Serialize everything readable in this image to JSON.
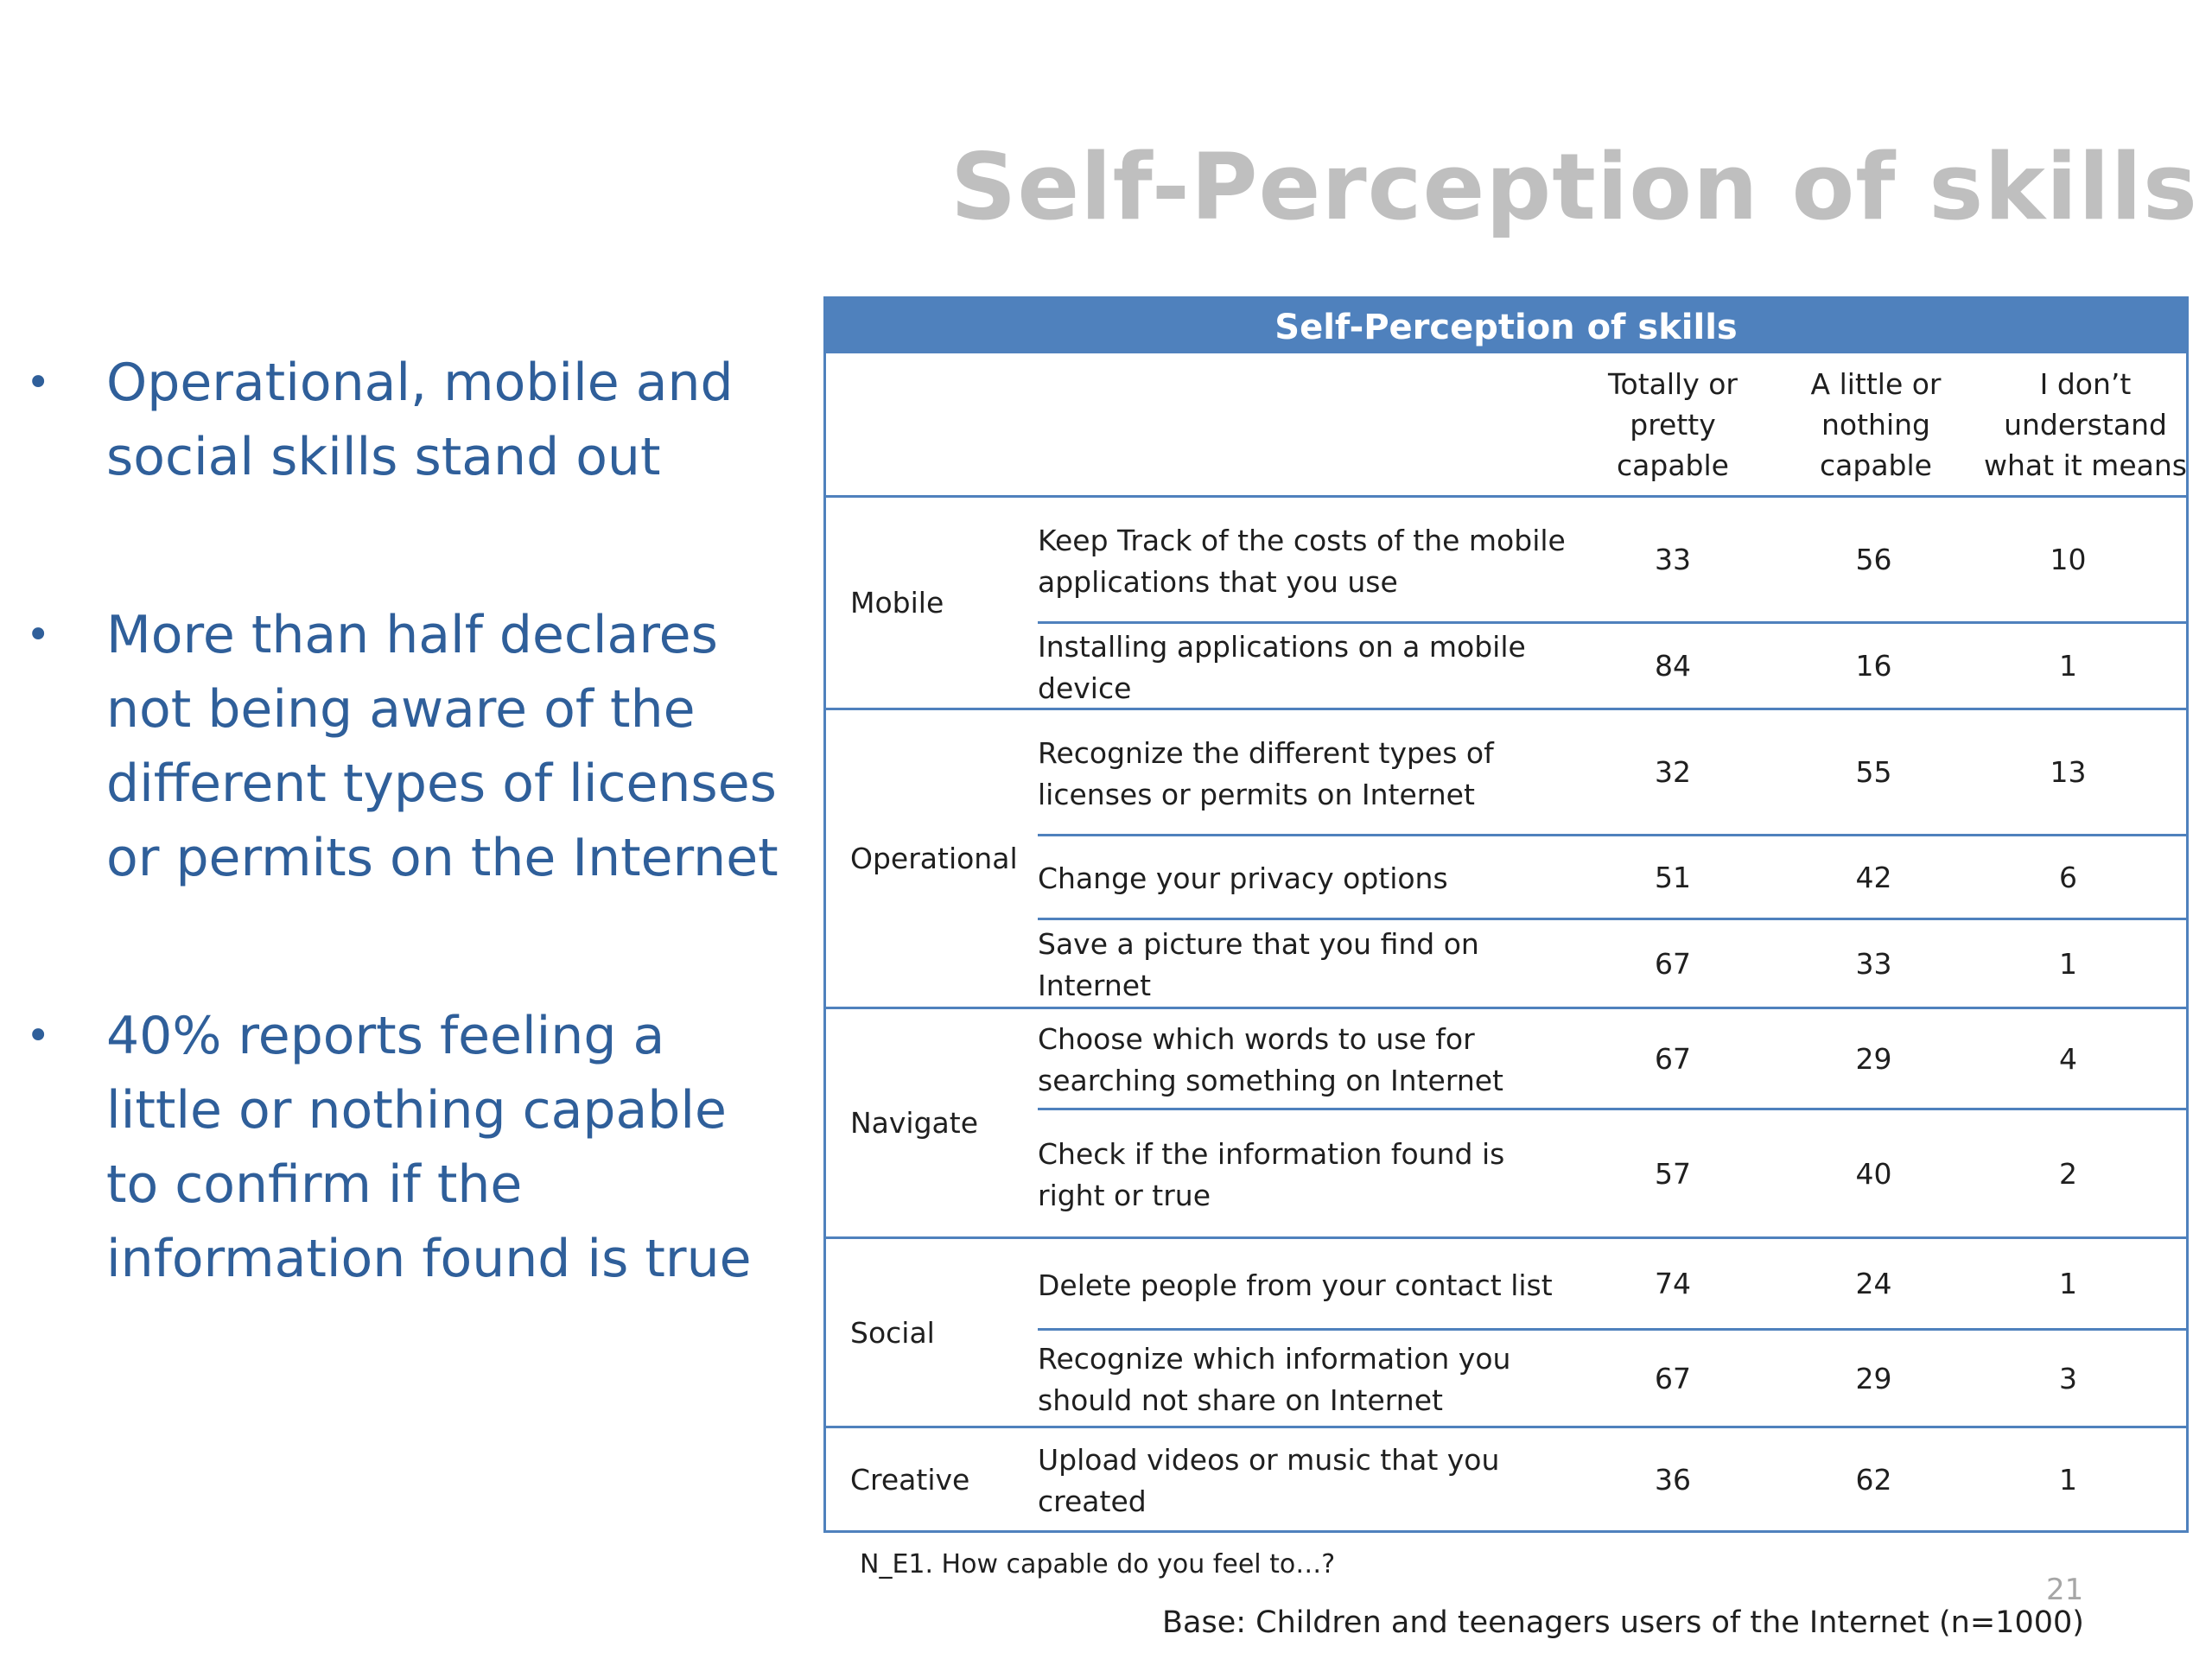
{
  "slide": {
    "title": "Self-Perception of skills",
    "page_number": "21"
  },
  "bullets": [
    "Operational, mobile and social skills stand out",
    "More than half declares not being aware of the different types of licenses or permits on the Internet",
    "40% reports feeling a little or nothing capable to confirm if the information found is true"
  ],
  "table": {
    "title": "Self-Perception of skills",
    "columns": [
      "Totally or pretty capable",
      "A little or nothing capable",
      "I don’t understand what it means"
    ],
    "groups": [
      {
        "label": "Mobile",
        "rows": [
          {
            "item": "Keep Track of the costs of the mobile applications that you use",
            "values": [
              "33",
              "56",
              "10"
            ]
          },
          {
            "item": "Installing applications on a mobile device",
            "values": [
              "84",
              "16",
              "1"
            ]
          }
        ]
      },
      {
        "label": "Operational",
        "rows": [
          {
            "item": "Recognize the different  types of licenses or permits on Internet",
            "values": [
              "32",
              "55",
              "13"
            ]
          },
          {
            "item": "Change your privacy options",
            "values": [
              "51",
              "42",
              "6"
            ]
          },
          {
            "item": "Save a picture that you find on Internet",
            "values": [
              "67",
              "33",
              "1"
            ]
          }
        ]
      },
      {
        "label": "Navigate",
        "rows": [
          {
            "item": "Choose which words to use  for searching something on Internet",
            "values": [
              "67",
              "29",
              "4"
            ]
          },
          {
            "item": "Check if the information found is right or true",
            "values": [
              "57",
              "40",
              "2"
            ]
          }
        ]
      },
      {
        "label": "Social",
        "rows": [
          {
            "item": "Delete people from your contact list",
            "values": [
              "74",
              "24",
              "1"
            ]
          },
          {
            "item": "Recognize which information you should not share on Internet",
            "values": [
              "67",
              "29",
              "3"
            ]
          }
        ]
      },
      {
        "label": "Creative",
        "rows": [
          {
            "item": "Upload  videos  or music that you created",
            "values": [
              "36",
              "62",
              "1"
            ]
          }
        ]
      }
    ]
  },
  "footnote": "N_E1. How capable do you feel to…?",
  "base": "Base: Children and teenagers users of the Internet (n=1000)"
}
